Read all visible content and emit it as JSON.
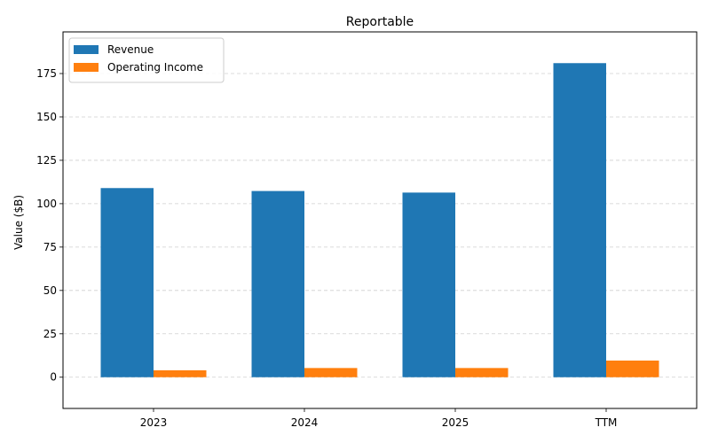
{
  "chart_data": {
    "type": "bar",
    "title": "Reportable",
    "xlabel": "",
    "ylabel": "Value ($B)",
    "categories": [
      "2023",
      "2024",
      "2025",
      "TTM"
    ],
    "series": [
      {
        "name": "Revenue",
        "values": [
          109.0,
          107.3,
          106.4,
          181.0
        ],
        "color": "#1f77b4"
      },
      {
        "name": "Operating Income",
        "values": [
          4.0,
          5.3,
          5.3,
          9.6
        ],
        "color": "#ff7f0e"
      }
    ],
    "ylim": [
      -18,
      199
    ],
    "yticks": [
      0,
      25,
      50,
      75,
      100,
      125,
      150,
      175
    ],
    "grid": "y, dashed",
    "legend_position": "top-left"
  }
}
